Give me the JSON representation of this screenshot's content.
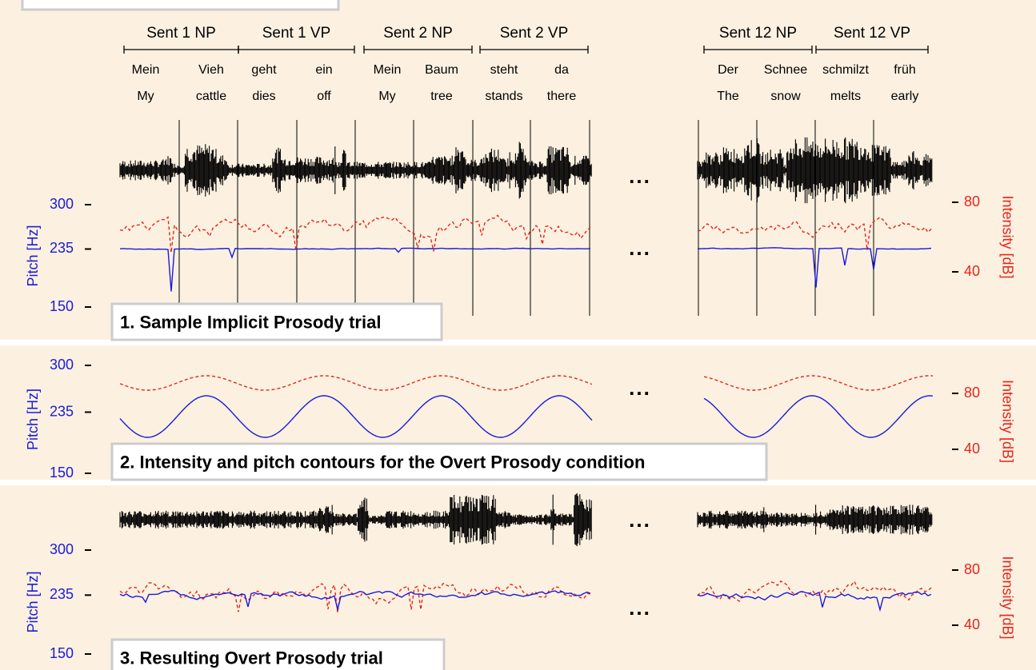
{
  "phrases": [
    "Sent 1 NP",
    "Sent 1 VP",
    "Sent 2 NP",
    "Sent 2 VP",
    "Sent 12 NP",
    "Sent 12 VP"
  ],
  "words": [
    {
      "german": "Mein",
      "english": "My"
    },
    {
      "german": "Vieh",
      "english": "cattle"
    },
    {
      "german": "geht",
      "english": "dies"
    },
    {
      "german": "ein",
      "english": "off"
    },
    {
      "german": "Mein",
      "english": "My"
    },
    {
      "german": "Baum",
      "english": "tree"
    },
    {
      "german": "steht",
      "english": "stands"
    },
    {
      "german": "da",
      "english": "there"
    },
    {
      "german": "Der",
      "english": "The"
    },
    {
      "german": "Schnee",
      "english": "snow"
    },
    {
      "german": "schmilzt",
      "english": "melts"
    },
    {
      "german": "früh",
      "english": "early"
    }
  ],
  "ellipsis": "...",
  "panels": [
    {
      "label": "1. Sample Implicit Prosody trial",
      "pitch_axis": {
        "title": "Pitch [Hz]",
        "ylim": [
          150,
          300
        ],
        "yticks": [
          150,
          235,
          300
        ],
        "color": "#1a1adb"
      },
      "intensity_axis": {
        "title": "Intensity [dB]",
        "ylim": [
          40,
          80
        ],
        "yticks": [
          40,
          80
        ],
        "color": "#e8241b"
      }
    },
    {
      "label": "2. Intensity and pitch contours for the Overt Prosody condition",
      "pitch_axis": {
        "title": "Pitch [Hz]",
        "ylim": [
          150,
          300
        ],
        "yticks": [
          150,
          235,
          300
        ],
        "color": "#1a1adb"
      },
      "intensity_axis": {
        "title": "Intensity [dB]",
        "ylim": [
          40,
          80
        ],
        "yticks": [
          40,
          80
        ],
        "color": "#e8241b"
      }
    },
    {
      "label": "3. Resulting Overt Prosody trial",
      "pitch_axis": {
        "title": "Pitch [Hz]",
        "ylim": [
          150,
          300
        ],
        "yticks": [
          150,
          235,
          300
        ],
        "color": "#1a1adb"
      },
      "intensity_axis": {
        "title": "Intensity [dB]",
        "ylim": [
          40,
          80
        ],
        "yticks": [
          40,
          80
        ],
        "color": "#e8241b"
      }
    }
  ]
}
